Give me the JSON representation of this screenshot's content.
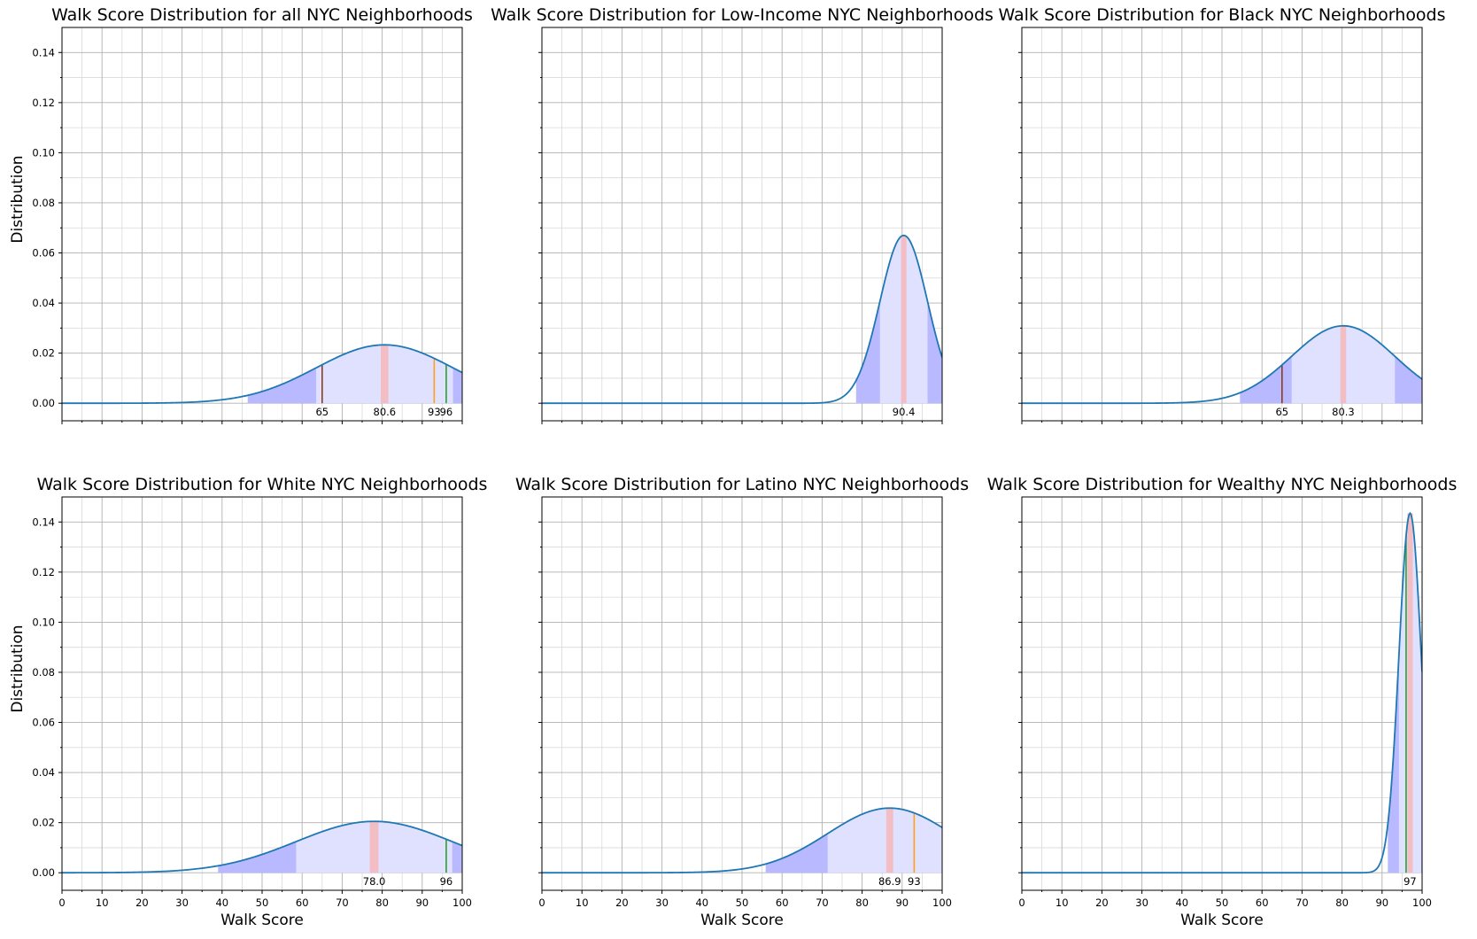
{
  "colors": {
    "curve": "#1f77b4",
    "band_inner": "#e0e0ff",
    "band_outer": "#b9b9ff",
    "mean_line": "#f4b6b8",
    "grid_major": "#b0b0b0",
    "grid_minor": "#d9d9d9",
    "marker_brown": "#8c3b1e",
    "marker_orange": "#ff9f1c",
    "marker_green": "#2ca02c"
  },
  "chart_data": [
    {
      "type": "area",
      "title": "Walk Score Distribution for all NYC Neighborhoods",
      "xlabel": "",
      "ylabel": "Distribution",
      "xlim": [
        0,
        100
      ],
      "ylim": [
        -0.007,
        0.15
      ],
      "grid": true,
      "show_xticklabels": false,
      "show_yticklabels": true,
      "distribution": {
        "mean": 80.6,
        "sd": 17.1,
        "peak": 0.0233
      },
      "mean_label": "80.6",
      "markers": [
        {
          "x": 65,
          "label": "65",
          "color": "marker_brown"
        },
        {
          "x": 93,
          "label": "93",
          "color": "marker_orange"
        },
        {
          "x": 96,
          "label": "96",
          "color": "marker_green"
        }
      ]
    },
    {
      "type": "area",
      "title": "Walk Score Distribution for Low-Income NYC Neighborhoods",
      "xlabel": "",
      "ylabel": "",
      "xlim": [
        0,
        100
      ],
      "ylim": [
        -0.007,
        0.15
      ],
      "grid": true,
      "show_xticklabels": false,
      "show_yticklabels": false,
      "distribution": {
        "mean": 90.4,
        "sd": 5.95,
        "peak": 0.067
      },
      "mean_label": "90.4",
      "markers": []
    },
    {
      "type": "area",
      "title": "Walk Score Distribution for Black NYC Neighborhoods",
      "xlabel": "",
      "ylabel": "",
      "xlim": [
        0,
        100
      ],
      "ylim": [
        -0.007,
        0.15
      ],
      "grid": true,
      "show_xticklabels": false,
      "show_yticklabels": false,
      "distribution": {
        "mean": 80.3,
        "sd": 12.9,
        "peak": 0.0309
      },
      "mean_label": "80.3",
      "markers": [
        {
          "x": 65,
          "label": "65",
          "color": "marker_brown"
        }
      ]
    },
    {
      "type": "area",
      "title": "Walk Score Distribution for White NYC Neighborhoods",
      "xlabel": "Walk Score",
      "ylabel": "Distribution",
      "xlim": [
        0,
        100
      ],
      "ylim": [
        -0.007,
        0.15
      ],
      "grid": true,
      "show_xticklabels": true,
      "show_yticklabels": true,
      "distribution": {
        "mean": 78.0,
        "sd": 19.5,
        "peak": 0.0205
      },
      "mean_label": "78.0",
      "markers": [
        {
          "x": 96,
          "label": "96",
          "color": "marker_green"
        }
      ]
    },
    {
      "type": "area",
      "title": "Walk Score Distribution for Latino NYC Neighborhoods",
      "xlabel": "Walk Score",
      "ylabel": "",
      "xlim": [
        0,
        100
      ],
      "ylim": [
        -0.007,
        0.15
      ],
      "grid": true,
      "show_xticklabels": true,
      "show_yticklabels": false,
      "distribution": {
        "mean": 86.9,
        "sd": 15.5,
        "peak": 0.0258
      },
      "mean_label": "86.9",
      "markers": [
        {
          "x": 93,
          "label": "93",
          "color": "marker_orange"
        }
      ]
    },
    {
      "type": "area",
      "title": "Walk Score Distribution for Wealthy NYC Neighborhoods",
      "xlabel": "Walk Score",
      "ylabel": "",
      "xlim": [
        0,
        100
      ],
      "ylim": [
        -0.007,
        0.15
      ],
      "grid": true,
      "show_xticklabels": true,
      "show_yticklabels": false,
      "distribution": {
        "mean": 97,
        "sd": 2.78,
        "peak": 0.1435
      },
      "mean_label": "97",
      "markers": [
        {
          "x": 96,
          "label": "",
          "color": "marker_green"
        }
      ]
    }
  ],
  "x_ticks": [
    "0",
    "10",
    "20",
    "30",
    "40",
    "50",
    "60",
    "70",
    "80",
    "90",
    "100"
  ],
  "y_ticks": [
    "0.00",
    "0.02",
    "0.04",
    "0.06",
    "0.08",
    "0.10",
    "0.12",
    "0.14"
  ]
}
